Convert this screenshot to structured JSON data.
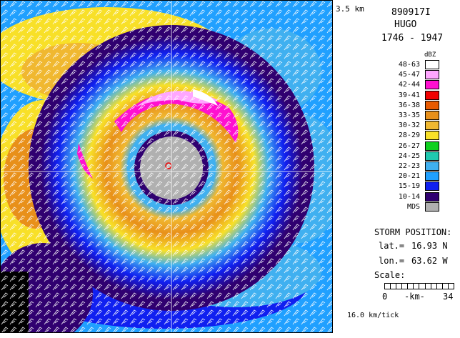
{
  "header": {
    "altitude": "3.5 km",
    "flight_id": "890917I",
    "storm_name": "HUGO",
    "time_range": "1746 - 1947"
  },
  "legend": {
    "unit": "dBZ",
    "bins": [
      {
        "label": "48-63",
        "color": "#ffffff"
      },
      {
        "label": "45-47",
        "color": "#ffa6ff"
      },
      {
        "label": "42-44",
        "color": "#ff10d0"
      },
      {
        "label": "39-41",
        "color": "#f00000"
      },
      {
        "label": "36-38",
        "color": "#e85a00"
      },
      {
        "label": "33-35",
        "color": "#e8901a"
      },
      {
        "label": "30-32",
        "color": "#f0b830"
      },
      {
        "label": "28-29",
        "color": "#f8e028"
      },
      {
        "label": "26-27",
        "color": "#10d020"
      },
      {
        "label": "24-25",
        "color": "#20c8b0"
      },
      {
        "label": "22-23",
        "color": "#40b0f0"
      },
      {
        "label": "20-21",
        "color": "#20a0ff"
      },
      {
        "label": "15-19",
        "color": "#1020f0"
      },
      {
        "label": "10-14",
        "color": "#300070"
      },
      {
        "label": "MDS",
        "color": "#b0b0b0"
      }
    ]
  },
  "storm_position": {
    "heading": "STORM POSITION:",
    "lat_label": "lat.=",
    "lat_value": "16.93 N",
    "lon_label": "lon.=",
    "lon_value": "63.62 W"
  },
  "scale": {
    "heading": "Scale:",
    "min": "0",
    "unit": "-km-",
    "max": "34"
  },
  "tick_spacing": "16.0 km/tick"
}
